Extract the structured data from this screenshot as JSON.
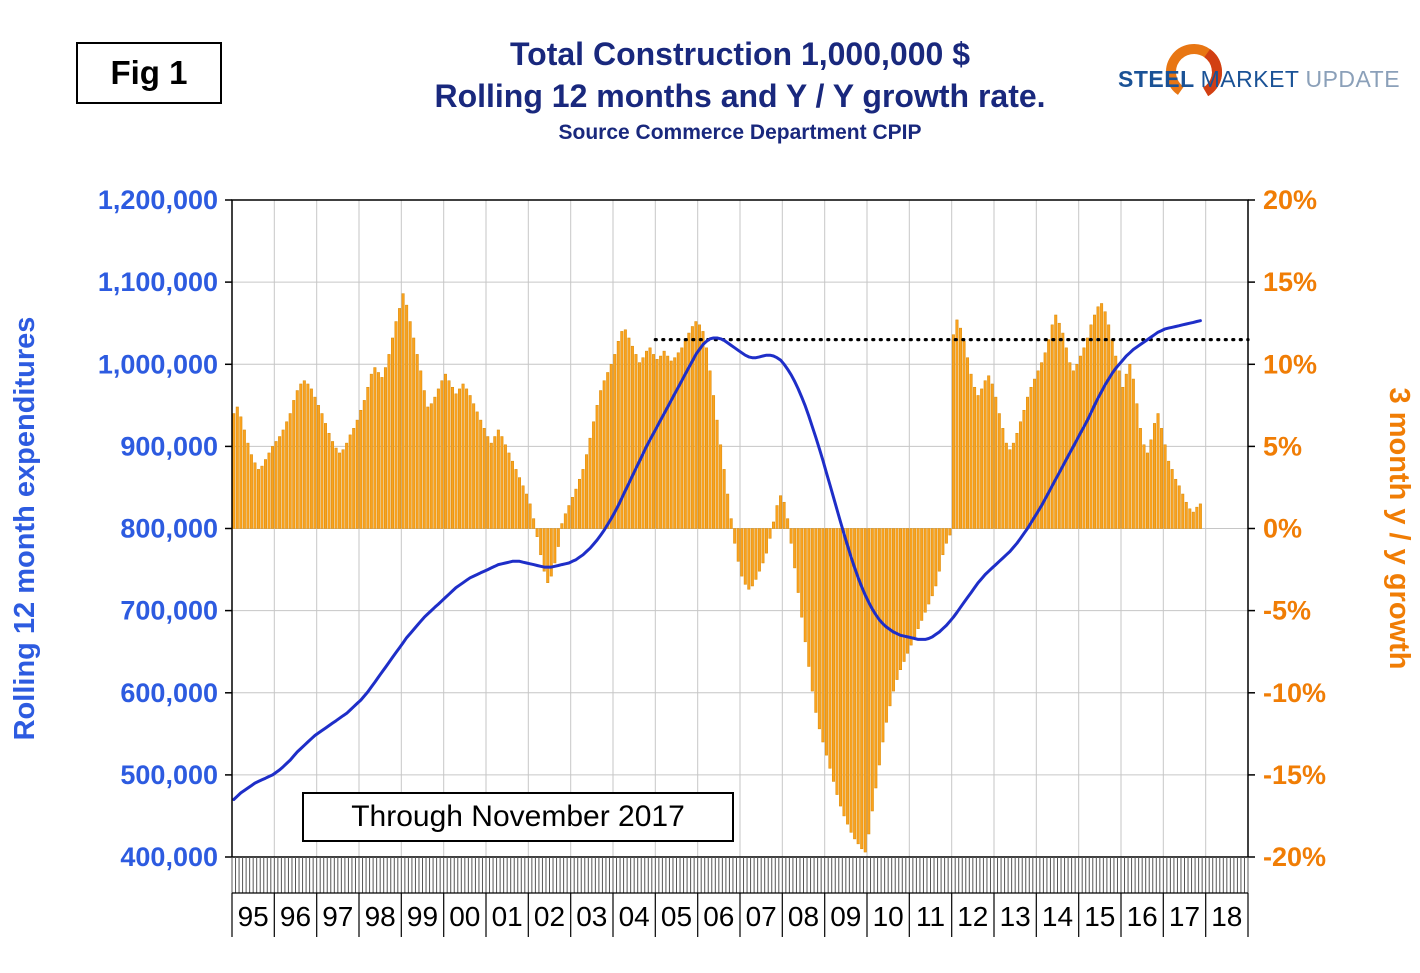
{
  "figure_label": "Fig 1",
  "header": {
    "title_line1": "Total Construction 1,000,000 $",
    "title_line2": "Rolling 12 months and Y / Y growth rate.",
    "source": "Source Commerce Department CPIP"
  },
  "logo": {
    "word1": "STEEL",
    "word2": "MARKET",
    "word3": "UPDATE"
  },
  "annotation_box": "Through November 2017",
  "colors": {
    "title_navy": "#19287d",
    "axis_blue": "#2d5be0",
    "line_blue": "#1e2ec8",
    "axis_orange": "#f07d05",
    "bar_orange": "#faa21e",
    "bar_edge": "#d88a08",
    "grid_gray": "#c6c6c6"
  },
  "chart_data": {
    "type": "combo",
    "series_types": [
      "bar",
      "line"
    ],
    "title": "Total Construction 1,000,000 $ — Rolling 12 months and Y / Y growth rate",
    "x_start": "1995-01",
    "x_end": "2017-11",
    "x_year_labels": [
      "95",
      "96",
      "97",
      "98",
      "99",
      "00",
      "01",
      "02",
      "03",
      "04",
      "05",
      "06",
      "07",
      "08",
      "09",
      "10",
      "11",
      "12",
      "13",
      "14",
      "15",
      "16",
      "17",
      "18"
    ],
    "left_axis": {
      "label": "Rolling 12 month expenditures",
      "min": 400000,
      "max": 1200000,
      "step": 100000,
      "tick_labels": [
        "1,200,000",
        "1,100,000",
        "1,000,000",
        "900,000",
        "800,000",
        "700,000",
        "600,000",
        "500,000",
        "400,000"
      ]
    },
    "right_axis": {
      "label": "3 month y / y growth",
      "min": -20,
      "max": 20,
      "step": 5,
      "tick_labels": [
        "20%",
        "15%",
        "10%",
        "5%",
        "0%",
        "-5%",
        "-10%",
        "-15%",
        "-20%"
      ]
    },
    "grid": true,
    "legend": "none",
    "reference_line": {
      "style": "dotted",
      "axis": "left",
      "value": 1030000,
      "from_year_label": "05",
      "to_year_label": "18"
    },
    "series": [
      {
        "name": "3 month y / y growth",
        "type": "bar",
        "axis": "right",
        "unit": "%",
        "monthly_values": [
          7.0,
          7.4,
          6.8,
          6.0,
          5.2,
          4.5,
          4.0,
          3.6,
          3.8,
          4.2,
          4.6,
          5.0,
          5.3,
          5.6,
          6.0,
          6.5,
          7.0,
          7.8,
          8.4,
          8.8,
          9.0,
          8.8,
          8.5,
          8.0,
          7.5,
          7.0,
          6.4,
          5.8,
          5.3,
          4.9,
          4.6,
          4.8,
          5.2,
          5.7,
          6.1,
          6.6,
          7.2,
          7.8,
          8.6,
          9.4,
          9.8,
          9.5,
          9.2,
          9.8,
          10.6,
          11.6,
          12.6,
          13.4,
          14.3,
          13.6,
          12.6,
          11.6,
          10.6,
          9.6,
          8.4,
          7.4,
          7.6,
          8.0,
          8.5,
          9.0,
          9.4,
          9.0,
          8.6,
          8.2,
          8.5,
          8.8,
          8.5,
          8.1,
          7.6,
          7.1,
          6.6,
          6.1,
          5.6,
          5.2,
          5.6,
          6.0,
          5.6,
          5.1,
          4.6,
          4.1,
          3.6,
          3.1,
          2.6,
          2.1,
          1.5,
          0.6,
          -0.5,
          -1.6,
          -2.6,
          -3.3,
          -2.9,
          -2.1,
          -1.1,
          0.3,
          0.9,
          1.4,
          1.9,
          2.4,
          3.0,
          3.6,
          4.5,
          5.5,
          6.5,
          7.5,
          8.4,
          9.0,
          9.5,
          10.0,
          10.6,
          11.4,
          12.0,
          12.1,
          11.6,
          11.1,
          10.6,
          10.1,
          10.4,
          10.8,
          11.0,
          10.6,
          10.3,
          10.5,
          10.8,
          10.5,
          10.2,
          10.4,
          10.7,
          11.0,
          11.4,
          11.9,
          12.3,
          12.6,
          12.4,
          12.0,
          11.0,
          9.6,
          8.1,
          6.6,
          5.1,
          3.6,
          2.1,
          0.6,
          -0.9,
          -2.0,
          -2.9,
          -3.4,
          -3.7,
          -3.5,
          -3.1,
          -2.6,
          -2.1,
          -1.5,
          -0.6,
          0.4,
          1.4,
          2.0,
          1.6,
          0.6,
          -0.9,
          -2.4,
          -3.9,
          -5.4,
          -6.9,
          -8.4,
          -9.9,
          -11.2,
          -12.2,
          -13.0,
          -13.8,
          -14.6,
          -15.4,
          -16.2,
          -16.9,
          -17.5,
          -18.0,
          -18.5,
          -18.9,
          -19.2,
          -19.5,
          -19.7,
          -18.6,
          -17.2,
          -15.8,
          -14.4,
          -13.0,
          -11.8,
          -10.8,
          -9.9,
          -9.2,
          -8.6,
          -8.1,
          -7.6,
          -7.1,
          -6.6,
          -6.1,
          -5.6,
          -5.1,
          -4.6,
          -4.1,
          -3.5,
          -2.6,
          -1.6,
          -0.9,
          -0.4,
          11.8,
          12.7,
          12.2,
          11.4,
          10.4,
          9.4,
          8.6,
          8.1,
          8.5,
          9.0,
          9.3,
          8.8,
          8.0,
          7.0,
          6.1,
          5.2,
          4.8,
          5.2,
          5.8,
          6.5,
          7.2,
          8.0,
          8.6,
          9.1,
          9.6,
          10.1,
          10.7,
          11.5,
          12.4,
          13.0,
          12.5,
          11.9,
          11.0,
          10.1,
          9.6,
          10.0,
          10.5,
          11.0,
          11.6,
          12.4,
          13.0,
          13.5,
          13.7,
          13.2,
          12.4,
          11.5,
          10.5,
          9.6,
          8.6,
          9.4,
          10.0,
          9.1,
          7.6,
          6.1,
          5.1,
          4.6,
          5.4,
          6.4,
          7.0,
          6.1,
          5.1,
          4.1,
          3.6,
          3.0,
          2.6,
          2.1,
          1.6,
          1.2,
          1.0,
          1.3,
          1.5
        ]
      },
      {
        "name": "Rolling 12 month expenditures",
        "type": "line",
        "axis": "left",
        "unit": "1,000,000 $",
        "monthly_values": [
          470000,
          474000,
          478000,
          481000,
          484000,
          487000,
          490000,
          492000,
          494000,
          496000,
          498000,
          500000,
          503000,
          506000,
          510000,
          514000,
          518000,
          523000,
          528000,
          532000,
          536000,
          540000,
          544000,
          548000,
          551000,
          554000,
          557000,
          560000,
          563000,
          566000,
          569000,
          572000,
          575000,
          579000,
          583000,
          587000,
          591000,
          596000,
          601000,
          607000,
          613000,
          619000,
          625000,
          631000,
          637000,
          643000,
          649000,
          655000,
          661000,
          667000,
          672000,
          677000,
          682000,
          687000,
          692000,
          696000,
          700000,
          704000,
          708000,
          712000,
          716000,
          720000,
          724000,
          728000,
          731000,
          734000,
          737000,
          740000,
          742000,
          744000,
          746000,
          748000,
          750000,
          752000,
          754000,
          756000,
          757000,
          758000,
          759000,
          760000,
          760000,
          760000,
          759000,
          758000,
          757000,
          756000,
          755000,
          754000,
          753000,
          753000,
          753000,
          754000,
          755000,
          756000,
          757000,
          758000,
          760000,
          762000,
          765000,
          768000,
          772000,
          776000,
          781000,
          786000,
          792000,
          798000,
          805000,
          812000,
          820000,
          828000,
          837000,
          846000,
          855000,
          864000,
          873000,
          882000,
          891000,
          900000,
          908000,
          916000,
          924000,
          932000,
          940000,
          948000,
          956000,
          964000,
          972000,
          980000,
          988000,
          996000,
          1004000,
          1012000,
          1018000,
          1024000,
          1028000,
          1031000,
          1032000,
          1032000,
          1031000,
          1029000,
          1026000,
          1023000,
          1020000,
          1017000,
          1014000,
          1011000,
          1009000,
          1008000,
          1008000,
          1009000,
          1010000,
          1011000,
          1011000,
          1010000,
          1008000,
          1005000,
          1000000,
          994000,
          987000,
          979000,
          970000,
          960000,
          949000,
          937000,
          924000,
          911000,
          897000,
          883000,
          868000,
          853000,
          838000,
          823000,
          808000,
          793000,
          779000,
          765000,
          752000,
          740000,
          729000,
          719000,
          710000,
          702000,
          695000,
          689000,
          684000,
          680000,
          677000,
          674000,
          672000,
          670000,
          669000,
          668000,
          667000,
          666000,
          665000,
          665000,
          665000,
          666000,
          668000,
          671000,
          674000,
          678000,
          682000,
          687000,
          692000,
          698000,
          704000,
          710000,
          716000,
          722000,
          728000,
          734000,
          739000,
          744000,
          748000,
          752000,
          756000,
          760000,
          764000,
          768000,
          772000,
          777000,
          782000,
          788000,
          794000,
          800000,
          807000,
          814000,
          821000,
          828000,
          836000,
          844000,
          852000,
          860000,
          868000,
          876000,
          884000,
          892000,
          900000,
          908000,
          916000,
          924000,
          932000,
          941000,
          950000,
          959000,
          967000,
          975000,
          982000,
          989000,
          995000,
          1000000,
          1005000,
          1010000,
          1014000,
          1018000,
          1021000,
          1024000,
          1027000,
          1030000,
          1033000,
          1036000,
          1039000,
          1041000,
          1043000,
          1044000,
          1045000,
          1046000,
          1047000,
          1048000,
          1049000,
          1050000,
          1051000,
          1052000,
          1053000
        ]
      }
    ]
  }
}
